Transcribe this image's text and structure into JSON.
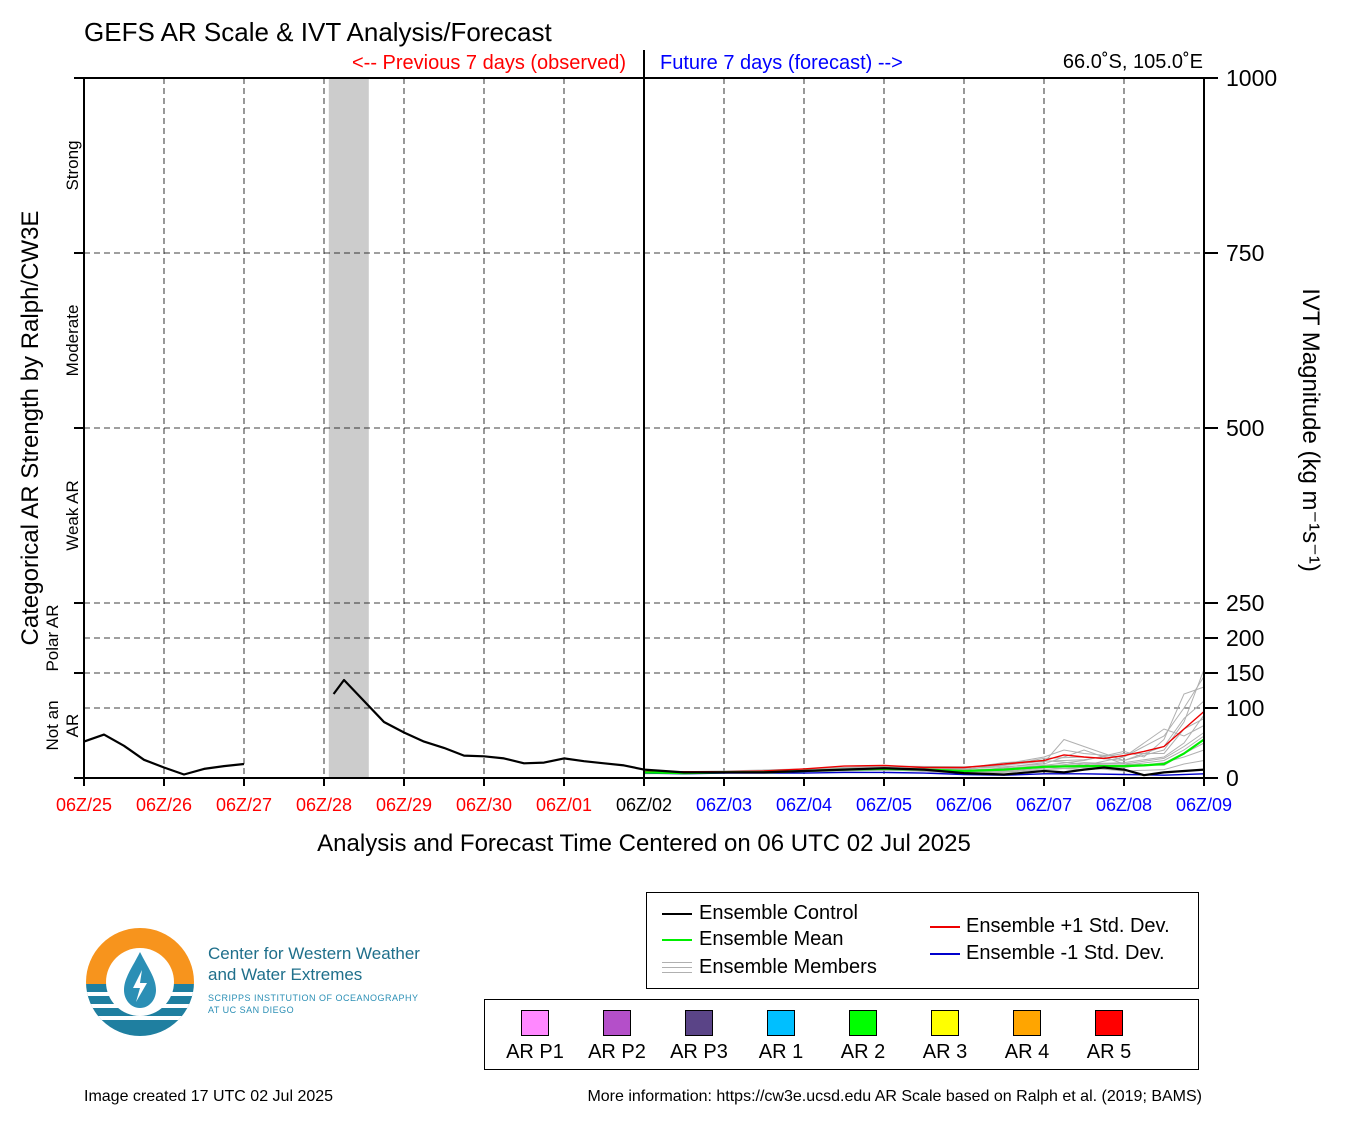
{
  "title": "GEFS AR Scale & IVT Analysis/Forecast",
  "header": {
    "previous_label": "<-- Previous 7 days (observed)",
    "future_label": "Future 7 days (forecast) -->",
    "location": "66.0˚S, 105.0˚E"
  },
  "colors": {
    "observed": "#ff0000",
    "forecast": "#0000ff",
    "control": "#000000",
    "mean": "#00ee00",
    "plus_std": "#ee0000",
    "minus_std": "#0000cc",
    "members": "#b0b0b0",
    "shading": "#cccccc"
  },
  "chart_data": {
    "type": "line",
    "xlabel": "Analysis and Forecast Time Centered on 06 UTC 02 Jul 2025",
    "ylabel_left": "Categorical AR Strength by Ralph/CW3E",
    "ylabel_right": "IVT Magnitude (kg m⁻¹s⁻¹)",
    "ylim": [
      0,
      1000
    ],
    "xlim": [
      0,
      14
    ],
    "grid": true,
    "x_ticks": [
      {
        "label": "06Z/25",
        "x": 0,
        "kind": "observed"
      },
      {
        "label": "06Z/26",
        "x": 1,
        "kind": "observed"
      },
      {
        "label": "06Z/27",
        "x": 2,
        "kind": "observed"
      },
      {
        "label": "06Z/28",
        "x": 3,
        "kind": "observed"
      },
      {
        "label": "06Z/29",
        "x": 4,
        "kind": "observed"
      },
      {
        "label": "06Z/30",
        "x": 5,
        "kind": "observed"
      },
      {
        "label": "06Z/01",
        "x": 6,
        "kind": "observed"
      },
      {
        "label": "06Z/02",
        "x": 7,
        "kind": "now"
      },
      {
        "label": "06Z/03",
        "x": 8,
        "kind": "forecast"
      },
      {
        "label": "06Z/04",
        "x": 9,
        "kind": "forecast"
      },
      {
        "label": "06Z/05",
        "x": 10,
        "kind": "forecast"
      },
      {
        "label": "06Z/06",
        "x": 11,
        "kind": "forecast"
      },
      {
        "label": "06Z/07",
        "x": 12,
        "kind": "forecast"
      },
      {
        "label": "06Z/08",
        "x": 13,
        "kind": "forecast"
      },
      {
        "label": "06Z/09",
        "x": 14,
        "kind": "forecast"
      }
    ],
    "y_ticks": [
      {
        "value": 1000,
        "label": "1000"
      },
      {
        "value": 750,
        "label": "750"
      },
      {
        "value": 500,
        "label": "500"
      },
      {
        "value": 250,
        "label": "250"
      },
      {
        "value": 200,
        "label": "200"
      },
      {
        "value": 150,
        "label": "150"
      },
      {
        "value": 100,
        "label": "100"
      },
      {
        "value": 0,
        "label": "0"
      }
    ],
    "categories": [
      {
        "label": "Strong",
        "from": 750,
        "to": 1000
      },
      {
        "label": "Moderate",
        "from": 500,
        "to": 750
      },
      {
        "label": "Weak AR",
        "from": 250,
        "to": 500
      },
      {
        "label": "Polar AR",
        "from": 150,
        "to": 250
      },
      {
        "label": "Not an AR",
        "from": 0,
        "to": 150
      }
    ],
    "shaded_periods": [
      {
        "from": 3.06,
        "to": 3.56
      }
    ],
    "series": [
      {
        "name": "Ensemble Control",
        "segments": [
          [
            [
              0,
              52
            ],
            [
              0.25,
              62
            ],
            [
              0.5,
              46
            ],
            [
              0.75,
              26
            ],
            [
              1,
              15
            ],
            [
              1.25,
              5
            ],
            [
              1.5,
              13
            ],
            [
              1.75,
              17
            ],
            [
              2,
              20
            ]
          ],
          [
            [
              3.12,
              120
            ],
            [
              3.25,
              140
            ],
            [
              3.5,
              110
            ],
            [
              3.75,
              80
            ],
            [
              4,
              65
            ],
            [
              4.25,
              52
            ],
            [
              4.5,
              43
            ],
            [
              4.75,
              32
            ],
            [
              5,
              31
            ],
            [
              5.25,
              28
            ],
            [
              5.5,
              21
            ],
            [
              5.75,
              22
            ],
            [
              6,
              28
            ],
            [
              6.25,
              24
            ],
            [
              6.5,
              21
            ],
            [
              6.75,
              18
            ],
            [
              7,
              12
            ],
            [
              7.5,
              8
            ],
            [
              8,
              8
            ],
            [
              8.5,
              8
            ],
            [
              9,
              10
            ],
            [
              9.5,
              12
            ],
            [
              10,
              14
            ],
            [
              10.5,
              12
            ],
            [
              11,
              7
            ],
            [
              11.5,
              5
            ],
            [
              12,
              10
            ],
            [
              12.25,
              8
            ],
            [
              12.5,
              12
            ],
            [
              12.75,
              15
            ],
            [
              13,
              12
            ],
            [
              13.25,
              4
            ],
            [
              13.5,
              8
            ],
            [
              13.75,
              10
            ],
            [
              14,
              12
            ]
          ]
        ]
      },
      {
        "name": "Ensemble Mean",
        "segments": [
          [
            [
              7,
              8
            ],
            [
              7.5,
              7
            ],
            [
              8,
              8
            ],
            [
              8.5,
              8
            ],
            [
              9,
              10
            ],
            [
              9.5,
              12
            ],
            [
              10,
              13
            ],
            [
              10.5,
              12
            ],
            [
              11,
              10
            ],
            [
              11.5,
              12
            ],
            [
              12,
              16
            ],
            [
              12.5,
              17
            ],
            [
              13,
              17
            ],
            [
              13.25,
              18
            ],
            [
              13.5,
              20
            ],
            [
              13.75,
              35
            ],
            [
              14,
              55
            ]
          ]
        ]
      },
      {
        "name": "Ensemble +1 Std. Dev.",
        "segments": [
          [
            [
              7,
              9
            ],
            [
              7.5,
              9
            ],
            [
              8,
              9
            ],
            [
              8.5,
              10
            ],
            [
              9,
              13
            ],
            [
              9.5,
              17
            ],
            [
              10,
              18
            ],
            [
              10.5,
              15
            ],
            [
              11,
              15
            ],
            [
              11.5,
              20
            ],
            [
              12,
              25
            ],
            [
              12.25,
              33
            ],
            [
              12.5,
              30
            ],
            [
              12.75,
              28
            ],
            [
              13,
              32
            ],
            [
              13.25,
              38
            ],
            [
              13.5,
              45
            ],
            [
              13.75,
              70
            ],
            [
              14,
              95
            ]
          ]
        ]
      },
      {
        "name": "Ensemble -1 Std. Dev.",
        "segments": [
          [
            [
              7,
              7
            ],
            [
              7.5,
              6
            ],
            [
              8,
              7
            ],
            [
              8.5,
              7
            ],
            [
              9,
              7
            ],
            [
              9.5,
              8
            ],
            [
              10,
              8
            ],
            [
              10.5,
              7
            ],
            [
              11,
              5
            ],
            [
              11.5,
              4
            ],
            [
              12,
              6
            ],
            [
              12.5,
              6
            ],
            [
              13,
              5
            ],
            [
              13.5,
              4
            ],
            [
              14,
              6
            ]
          ]
        ]
      }
    ],
    "ensemble_members": [
      [
        [
          7,
          7
        ],
        [
          8,
          8
        ],
        [
          9,
          11
        ],
        [
          10,
          14
        ],
        [
          10.5,
          11
        ],
        [
          11,
          12
        ],
        [
          11.5,
          20
        ],
        [
          11.75,
          25
        ],
        [
          12,
          30
        ],
        [
          12.25,
          40
        ],
        [
          12.5,
          35
        ],
        [
          13,
          30
        ],
        [
          13.5,
          60
        ],
        [
          13.75,
          100
        ],
        [
          14,
          145
        ]
      ],
      [
        [
          7,
          8
        ],
        [
          8,
          9
        ],
        [
          9,
          12
        ],
        [
          10,
          15
        ],
        [
          11,
          8
        ],
        [
          11.5,
          15
        ],
        [
          12,
          22
        ],
        [
          12.25,
          55
        ],
        [
          12.5,
          45
        ],
        [
          13,
          25
        ],
        [
          13.5,
          40
        ],
        [
          13.75,
          80
        ],
        [
          14,
          155
        ]
      ],
      [
        [
          7,
          6
        ],
        [
          8,
          7
        ],
        [
          9,
          9
        ],
        [
          10,
          12
        ],
        [
          11,
          10
        ],
        [
          11.5,
          13
        ],
        [
          12,
          18
        ],
        [
          12.5,
          25
        ],
        [
          13,
          38
        ],
        [
          13.25,
          30
        ],
        [
          13.5,
          55
        ],
        [
          13.75,
          120
        ],
        [
          14,
          130
        ]
      ],
      [
        [
          7,
          9
        ],
        [
          8,
          8
        ],
        [
          9,
          10
        ],
        [
          10,
          13
        ],
        [
          11,
          6
        ],
        [
          11.5,
          9
        ],
        [
          12,
          14
        ],
        [
          12.5,
          20
        ],
        [
          13,
          22
        ],
        [
          13.5,
          30
        ],
        [
          13.75,
          50
        ],
        [
          14,
          90
        ]
      ],
      [
        [
          7,
          8
        ],
        [
          8,
          9
        ],
        [
          9,
          11
        ],
        [
          10,
          16
        ],
        [
          11,
          14
        ],
        [
          11.5,
          22
        ],
        [
          12,
          25
        ],
        [
          12.5,
          20
        ],
        [
          13,
          18
        ],
        [
          13.5,
          25
        ],
        [
          13.75,
          40
        ],
        [
          14,
          60
        ]
      ],
      [
        [
          7,
          7
        ],
        [
          8,
          8
        ],
        [
          9,
          9
        ],
        [
          10,
          11
        ],
        [
          11,
          9
        ],
        [
          11.5,
          11
        ],
        [
          12,
          15
        ],
        [
          12.5,
          12
        ],
        [
          13,
          15
        ],
        [
          13.5,
          22
        ],
        [
          13.75,
          30
        ],
        [
          14,
          40
        ]
      ],
      [
        [
          7,
          8
        ],
        [
          8,
          10
        ],
        [
          9,
          13
        ],
        [
          10,
          17
        ],
        [
          11,
          16
        ],
        [
          11.5,
          18
        ],
        [
          12,
          28
        ],
        [
          12.5,
          30
        ],
        [
          13,
          25
        ],
        [
          13.5,
          45
        ],
        [
          13.75,
          85
        ],
        [
          14,
          110
        ]
      ],
      [
        [
          7,
          7
        ],
        [
          8,
          7
        ],
        [
          9,
          10
        ],
        [
          10,
          12
        ],
        [
          11,
          7
        ],
        [
          11.5,
          8
        ],
        [
          12,
          12
        ],
        [
          12.5,
          15
        ],
        [
          13,
          10
        ],
        [
          13.5,
          12
        ],
        [
          13.75,
          20
        ],
        [
          14,
          25
        ]
      ],
      [
        [
          7,
          9
        ],
        [
          8,
          8
        ],
        [
          9,
          12
        ],
        [
          10,
          14
        ],
        [
          11,
          13
        ],
        [
          11.5,
          16
        ],
        [
          12,
          20
        ],
        [
          12.5,
          40
        ],
        [
          13,
          20
        ],
        [
          13.5,
          18
        ],
        [
          13.75,
          35
        ],
        [
          14,
          50
        ]
      ],
      [
        [
          7,
          8
        ],
        [
          8,
          9
        ],
        [
          9,
          11
        ],
        [
          10,
          13
        ],
        [
          11,
          11
        ],
        [
          11.5,
          14
        ],
        [
          12,
          18
        ],
        [
          12.5,
          18
        ],
        [
          13,
          30
        ],
        [
          13.5,
          70
        ],
        [
          13.75,
          60
        ],
        [
          14,
          75
        ]
      ],
      [
        [
          7,
          7
        ],
        [
          8,
          8
        ],
        [
          9,
          10
        ],
        [
          10,
          15
        ],
        [
          11,
          8
        ],
        [
          11.5,
          10
        ],
        [
          12,
          16
        ],
        [
          12.5,
          22
        ],
        [
          13,
          20
        ],
        [
          13.5,
          28
        ],
        [
          13.75,
          45
        ],
        [
          14,
          65
        ]
      ],
      [
        [
          7,
          8
        ],
        [
          8,
          9
        ],
        [
          9,
          12
        ],
        [
          10,
          13
        ],
        [
          11,
          12
        ],
        [
          11.5,
          18
        ],
        [
          12,
          24
        ],
        [
          12.5,
          26
        ],
        [
          13,
          35
        ],
        [
          13.5,
          35
        ],
        [
          13.75,
          70
        ],
        [
          14,
          85
        ]
      ]
    ]
  },
  "legend": {
    "control": "Ensemble Control",
    "mean": "Ensemble Mean",
    "members": "Ensemble Members",
    "plus_std": "Ensemble +1 Std. Dev.",
    "minus_std": "Ensemble -1 Std. Dev."
  },
  "ar_scale": [
    {
      "label": "AR P1",
      "color": "#ff88ff"
    },
    {
      "label": "AR P2",
      "color": "#b44fc9"
    },
    {
      "label": "AR P3",
      "color": "#5a4487"
    },
    {
      "label": "AR 1",
      "color": "#00bfff"
    },
    {
      "label": "AR 2",
      "color": "#00ff00"
    },
    {
      "label": "AR 3",
      "color": "#ffff00"
    },
    {
      "label": "AR 4",
      "color": "#ffa500"
    },
    {
      "label": "AR 5",
      "color": "#ff0000"
    }
  ],
  "logo": {
    "line1": "Center for Western Weather",
    "line2": "and Water Extremes",
    "sub1": "SCRIPPS INSTITUTION OF OCEANOGRAPHY",
    "sub2": "AT UC SAN DIEGO",
    "icon": "cw3e-logo-icon"
  },
  "footer": {
    "created": "Image created 17 UTC 02 Jul 2025",
    "more_info": "More information: https://cw3e.ucsd.edu AR Scale based on Ralph et al. (2019; BAMS)"
  }
}
